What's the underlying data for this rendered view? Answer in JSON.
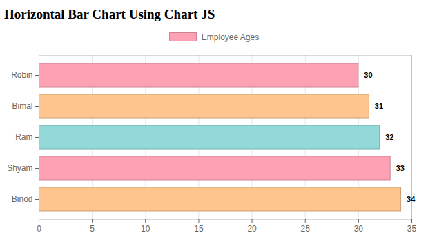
{
  "chart_data": {
    "type": "bar",
    "title": "Horizontal Bar Chart Using Chart JS",
    "orientation": "horizontal",
    "categories": [
      "Robin",
      "Bimal",
      "Ram",
      "Shyam",
      "Binod"
    ],
    "series": [
      {
        "name": "Employee Ages",
        "values": [
          30,
          31,
          32,
          33,
          34
        ],
        "colors": [
          "#ffa1b5",
          "#ffc58f",
          "#93d9d9",
          "#ffa1b5",
          "#ffc58f"
        ]
      }
    ],
    "xlim": [
      0,
      35
    ],
    "xticks": [
      0,
      5,
      10,
      15,
      20,
      25,
      30,
      35
    ],
    "grid": true,
    "legend": "top",
    "data_labels": true
  }
}
